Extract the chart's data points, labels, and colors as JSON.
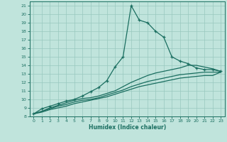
{
  "xlabel": "Humidex (Indice chaleur)",
  "bg_color": "#c0e4dc",
  "grid_color": "#98c8be",
  "line_color": "#1a6e60",
  "xlim": [
    -0.5,
    23.5
  ],
  "ylim": [
    8,
    21.5
  ],
  "xticks": [
    0,
    1,
    2,
    3,
    4,
    5,
    6,
    7,
    8,
    9,
    10,
    11,
    12,
    13,
    14,
    15,
    16,
    17,
    18,
    19,
    20,
    21,
    22,
    23
  ],
  "yticks": [
    8,
    9,
    10,
    11,
    12,
    13,
    14,
    15,
    16,
    17,
    18,
    19,
    20,
    21
  ],
  "line1_x": [
    0,
    1,
    2,
    3,
    4,
    5,
    6,
    7,
    8,
    9,
    10,
    11,
    12,
    13,
    14,
    15,
    16,
    17,
    18,
    19,
    20,
    21,
    22,
    23
  ],
  "line1_y": [
    8.3,
    8.9,
    9.2,
    9.5,
    9.8,
    10.0,
    10.4,
    10.9,
    11.4,
    12.2,
    13.8,
    15.0,
    21.0,
    19.3,
    19.0,
    18.0,
    17.3,
    15.0,
    14.5,
    14.2,
    13.7,
    13.5,
    13.5,
    13.3
  ],
  "line2_x": [
    0,
    1,
    2,
    3,
    4,
    5,
    6,
    7,
    8,
    9,
    10,
    11,
    12,
    13,
    14,
    15,
    16,
    17,
    18,
    19,
    20,
    21,
    22,
    23
  ],
  "line2_y": [
    8.3,
    8.6,
    9.0,
    9.3,
    9.6,
    9.9,
    10.1,
    10.2,
    10.4,
    10.7,
    11.0,
    11.5,
    12.0,
    12.4,
    12.8,
    13.1,
    13.3,
    13.5,
    13.7,
    14.0,
    14.0,
    13.8,
    13.6,
    13.3
  ],
  "line3_x": [
    0,
    1,
    2,
    3,
    4,
    5,
    6,
    7,
    8,
    9,
    10,
    11,
    12,
    13,
    14,
    15,
    16,
    17,
    18,
    19,
    20,
    21,
    22,
    23
  ],
  "line3_y": [
    8.3,
    8.6,
    8.9,
    9.2,
    9.4,
    9.7,
    9.9,
    10.0,
    10.2,
    10.5,
    10.8,
    11.1,
    11.5,
    11.8,
    12.1,
    12.3,
    12.5,
    12.7,
    12.9,
    13.0,
    13.1,
    13.2,
    13.2,
    13.2
  ],
  "line4_x": [
    0,
    1,
    2,
    3,
    4,
    5,
    6,
    7,
    8,
    9,
    10,
    11,
    12,
    13,
    14,
    15,
    16,
    17,
    18,
    19,
    20,
    21,
    22,
    23
  ],
  "line4_y": [
    8.3,
    8.5,
    8.8,
    9.0,
    9.2,
    9.5,
    9.7,
    9.9,
    10.1,
    10.3,
    10.6,
    10.9,
    11.2,
    11.5,
    11.7,
    11.9,
    12.1,
    12.3,
    12.5,
    12.6,
    12.7,
    12.8,
    12.8,
    13.2
  ]
}
